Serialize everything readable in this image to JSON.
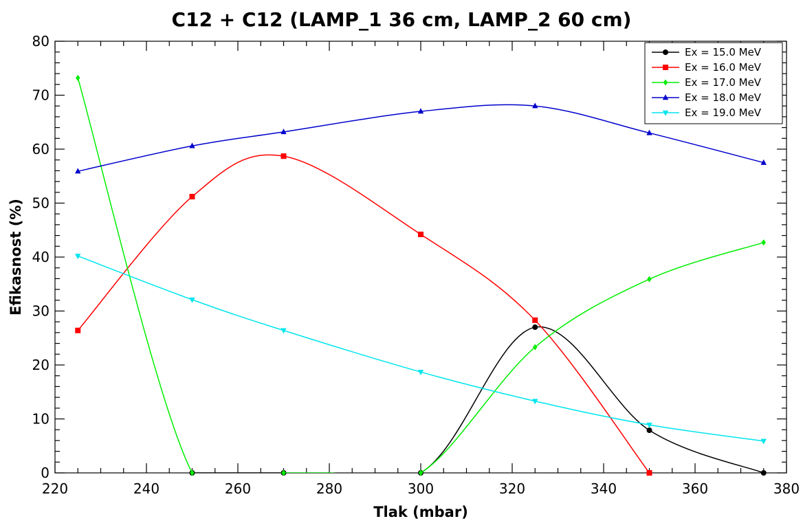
{
  "chart_data": {
    "type": "line",
    "title": "C12 + C12 (LAMP_1 36 cm, LAMP_2 60 cm)",
    "xlabel": "Tlak (mbar)",
    "ylabel": "Efikasnost (%)",
    "xlim": [
      220,
      380
    ],
    "ylim": [
      0,
      80
    ],
    "xticks": [
      220,
      240,
      260,
      280,
      300,
      320,
      340,
      360,
      380
    ],
    "yticks": [
      0,
      10,
      20,
      30,
      40,
      50,
      60,
      70,
      80
    ],
    "grid": false,
    "legend_position": "top-right",
    "x": [
      225,
      250,
      270,
      300,
      325,
      350,
      375
    ],
    "series": [
      {
        "name": "Ex = 15.0 MeV",
        "color": "#000000",
        "marker": "circle",
        "points": [
          [
            250,
            0
          ],
          [
            270,
            0
          ],
          [
            300,
            0
          ],
          [
            325,
            27
          ],
          [
            350,
            7.9
          ],
          [
            375,
            0
          ]
        ]
      },
      {
        "name": "Ex = 16.0 MeV",
        "color": "#ff0000",
        "marker": "square",
        "points": [
          [
            225,
            26.4
          ],
          [
            250,
            51.2
          ],
          [
            270,
            58.7
          ],
          [
            300,
            44.2
          ],
          [
            325,
            28.3
          ],
          [
            350,
            0
          ]
        ]
      },
      {
        "name": "Ex = 17.0 MeV",
        "color": "#00ee00",
        "marker": "diamond",
        "points": [
          [
            225,
            73.2
          ],
          [
            250,
            0
          ],
          [
            270,
            0
          ],
          [
            280,
            0
          ],
          [
            300,
            0
          ],
          [
            325,
            23.3
          ],
          [
            350,
            35.9
          ],
          [
            375,
            42.7
          ]
        ]
      },
      {
        "name": "Ex = 18.0 MeV",
        "color": "#0000cc",
        "marker": "triangle-up",
        "points": [
          [
            225,
            55.9
          ],
          [
            250,
            60.6
          ],
          [
            270,
            63.2
          ],
          [
            300,
            67
          ],
          [
            325,
            68
          ],
          [
            350,
            63
          ],
          [
            375,
            57.5
          ]
        ]
      },
      {
        "name": "Ex = 19.0 MeV",
        "color": "#00e5ee",
        "marker": "triangle-down",
        "points": [
          [
            225,
            40.2
          ],
          [
            250,
            32.1
          ],
          [
            270,
            26.4
          ],
          [
            300,
            18.7
          ],
          [
            325,
            13.3
          ],
          [
            350,
            8.9
          ],
          [
            375,
            5.9
          ]
        ]
      }
    ]
  }
}
